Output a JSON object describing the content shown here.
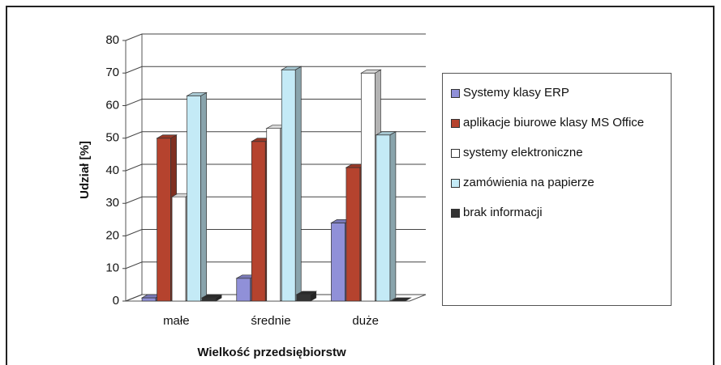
{
  "chart_data": {
    "type": "bar3d",
    "xlabel": "Wielkość przedsiębiorstw",
    "ylabel": "Udział [%]",
    "categories": [
      "małe",
      "średnie",
      "duże"
    ],
    "series": [
      {
        "name": "Systemy klasy ERP",
        "color": "#9090d8",
        "values": [
          1,
          7,
          24
        ]
      },
      {
        "name": "aplikacje biurowe klasy MS Office",
        "color": "#b5432e",
        "values": [
          50,
          49,
          41
        ]
      },
      {
        "name": "systemy elektroniczne",
        "color": "#ffffff",
        "values": [
          32,
          53,
          70
        ]
      },
      {
        "name": "zamówienia na papierze",
        "color": "#c4eaf6",
        "values": [
          63,
          71,
          51
        ]
      },
      {
        "name": "brak informacji",
        "color": "#333333",
        "values": [
          1,
          2,
          0
        ]
      }
    ],
    "ylim": [
      0,
      80
    ],
    "yticks": [
      0,
      10,
      20,
      30,
      40,
      50,
      60,
      70,
      80
    ],
    "grid": true,
    "legend": "right"
  }
}
